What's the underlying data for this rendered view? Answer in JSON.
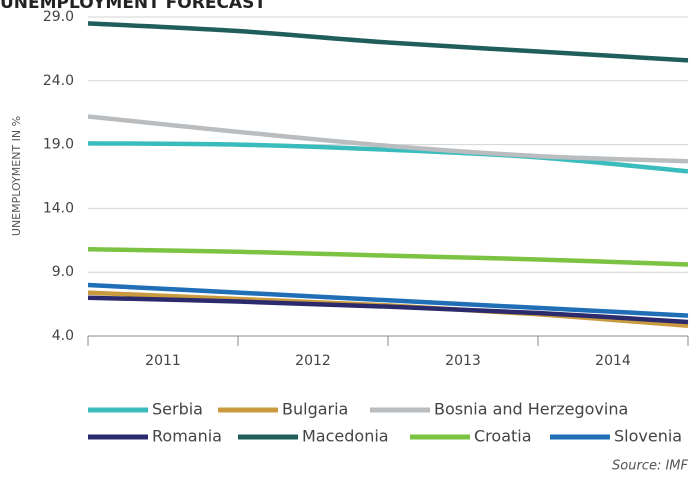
{
  "chart_data": {
    "type": "line",
    "title": "UNEMPLOYMENT FORECAST",
    "y_label": "UNEMPLOYMENT IN %",
    "source": "Source: IMF",
    "x": [
      2010.5,
      2011.5,
      2012.5,
      2013.5,
      2014.5
    ],
    "xlim": [
      2010.5,
      2014.5
    ],
    "xticks": [
      2011,
      2012,
      2013,
      2014
    ],
    "ylim": [
      4,
      29
    ],
    "yticks": [
      {
        "value": 4,
        "label": "4.0"
      },
      {
        "value": 9,
        "label": "9.0"
      },
      {
        "value": 14,
        "label": "14.0"
      },
      {
        "value": 19,
        "label": "19.0"
      },
      {
        "value": 24,
        "label": "24.0"
      },
      {
        "value": 29,
        "label": "29.0"
      }
    ],
    "grid": true,
    "legend": "bottom",
    "series": [
      {
        "name": "Serbia",
        "color": "#3bbcbc",
        "values": [
          19.1,
          19.0,
          18.6,
          18.0,
          16.9
        ]
      },
      {
        "name": "Bulgaria",
        "color": "#c99a3e",
        "values": [
          7.4,
          6.9,
          6.4,
          5.7,
          4.8
        ]
      },
      {
        "name": "Bosnia and Herzegovina",
        "color": "#b9bdc0",
        "values": [
          21.2,
          20.0,
          18.9,
          18.1,
          17.7
        ]
      },
      {
        "name": "Romania",
        "color": "#2b2a6c",
        "values": [
          7.0,
          6.7,
          6.3,
          5.8,
          5.1
        ]
      },
      {
        "name": "Macedonia",
        "color": "#1f5e5b",
        "values": [
          28.5,
          27.9,
          27.0,
          26.3,
          25.6
        ]
      },
      {
        "name": "Croatia",
        "color": "#7cc243",
        "values": [
          10.8,
          10.6,
          10.3,
          10.0,
          9.6
        ]
      },
      {
        "name": "Slovenia",
        "color": "#1f6eb6",
        "values": [
          8.0,
          7.4,
          6.8,
          6.2,
          5.6
        ]
      }
    ]
  }
}
